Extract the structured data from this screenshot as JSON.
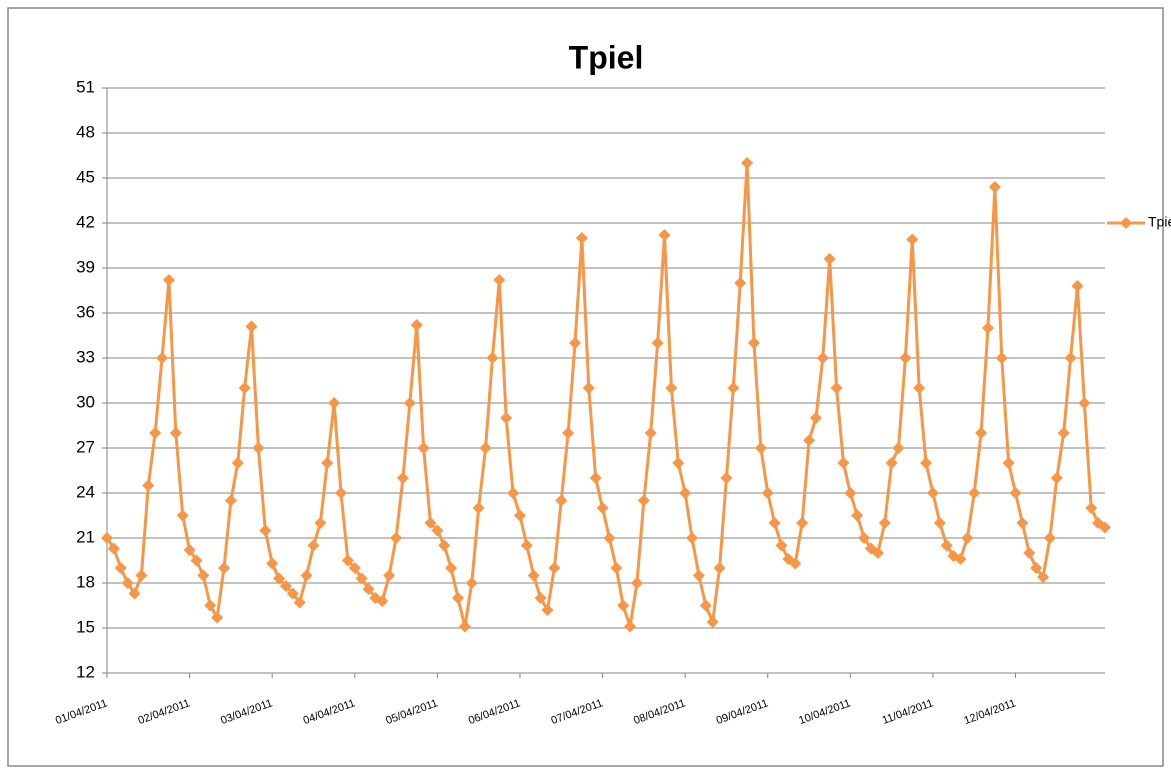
{
  "chart_data": {
    "type": "line",
    "title": "Tpiel",
    "categories": [
      "01/04/2011",
      null,
      null,
      null,
      null,
      null,
      null,
      null,
      null,
      null,
      null,
      null,
      "02/04/2011",
      null,
      null,
      null,
      null,
      null,
      null,
      null,
      null,
      null,
      null,
      null,
      "03/04/2011",
      null,
      null,
      null,
      null,
      null,
      null,
      null,
      null,
      null,
      null,
      null,
      "04/04/2011",
      null,
      null,
      null,
      null,
      null,
      null,
      null,
      null,
      null,
      null,
      null,
      "05/04/2011",
      null,
      null,
      null,
      null,
      null,
      null,
      null,
      null,
      null,
      null,
      null,
      "06/04/2011",
      null,
      null,
      null,
      null,
      null,
      null,
      null,
      null,
      null,
      null,
      null,
      "07/04/2011",
      null,
      null,
      null,
      null,
      null,
      null,
      null,
      null,
      null,
      null,
      null,
      "08/04/2011",
      null,
      null,
      null,
      null,
      null,
      null,
      null,
      null,
      null,
      null,
      null,
      "09/04/2011",
      null,
      null,
      null,
      null,
      null,
      null,
      null,
      null,
      null,
      null,
      null,
      "10/04/2011",
      null,
      null,
      null,
      null,
      null,
      null,
      null,
      null,
      null,
      null,
      null,
      "11/04/2011",
      null,
      null,
      null,
      null,
      null,
      null,
      null,
      null,
      null,
      null,
      null,
      "12/04/2011",
      null,
      null,
      null,
      null,
      null,
      null,
      null,
      null,
      null,
      null,
      null,
      null,
      null
    ],
    "series": [
      {
        "name": "Tpiel",
        "color": "#f79646",
        "values": [
          21,
          20.3,
          19.0,
          18.0,
          17.3,
          18.5,
          24.5,
          28,
          33,
          38.2,
          28,
          22.5,
          20.2,
          19.5,
          18.5,
          16.5,
          15.7,
          19,
          23.5,
          26,
          31,
          35.1,
          27,
          21.5,
          19.3,
          18.3,
          17.8,
          17.3,
          16.7,
          18.5,
          20.5,
          22,
          26,
          30,
          24,
          19.5,
          19,
          18.3,
          17.6,
          17,
          16.8,
          18.5,
          21,
          25,
          30,
          35.2,
          27,
          22,
          21.5,
          20.5,
          19,
          17,
          15.1,
          18,
          23,
          27,
          33,
          38.2,
          29,
          24,
          22.5,
          20.5,
          18.5,
          17,
          16.2,
          19,
          23.5,
          28,
          34,
          41,
          31,
          25,
          23,
          21,
          19,
          16.5,
          15.1,
          18,
          23.5,
          28,
          34,
          41.2,
          31,
          26,
          24,
          21,
          18.5,
          16.5,
          15.4,
          19,
          25,
          31,
          38,
          46,
          34,
          27,
          24,
          22,
          20.5,
          19.6,
          19.3,
          22,
          27.5,
          29,
          33,
          39.6,
          31,
          26,
          24,
          22.5,
          21,
          20.3,
          20,
          22,
          26,
          27,
          33,
          40.9,
          31,
          26,
          24,
          22,
          20.5,
          19.8,
          19.6,
          21,
          24,
          28,
          35,
          44.4,
          33,
          26,
          24,
          22,
          20,
          19,
          18.4,
          21,
          25,
          28,
          33,
          37.8,
          30,
          23,
          22,
          21.7
        ]
      }
    ],
    "ylim": [
      12,
      51
    ],
    "yticks": [
      12,
      15,
      18,
      21,
      24,
      27,
      30,
      33,
      36,
      39,
      42,
      45,
      48,
      51
    ],
    "grid": true,
    "legend": "right"
  }
}
